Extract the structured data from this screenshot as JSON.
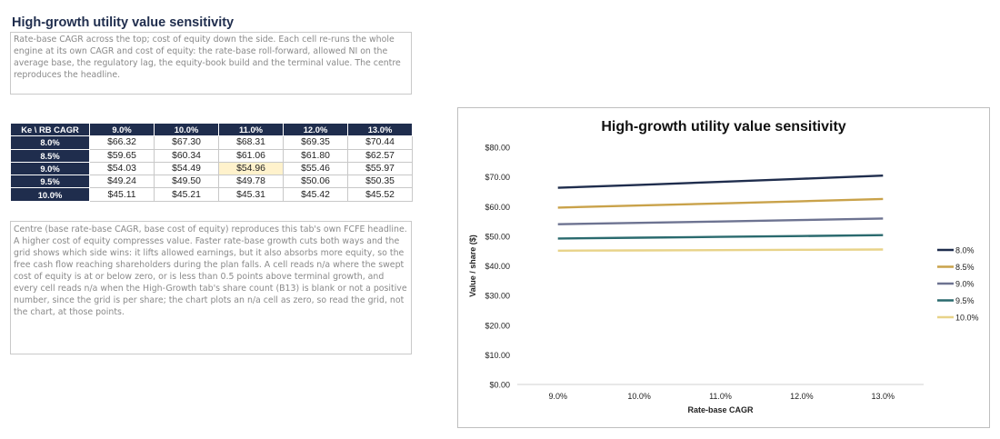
{
  "sheet": {
    "title": "High-growth utility value sensitivity",
    "intro": "Rate-base CAGR across the top; cost of equity down the side. Each cell re-runs the whole engine at its own CAGR and cost of equity: the rate-base roll-forward, allowed NI on the average base, the regulatory lag, the equity-book build and the terminal value. The centre reproduces the headline.",
    "footnote": "Centre (base rate-base CAGR, base cost of equity) reproduces this tab's own FCFE headline. A higher cost of equity compresses value. Faster rate-base growth cuts both ways and the grid shows which side wins: it lifts allowed earnings, but it also absorbs more equity, so the free cash flow reaching shareholders during the plan falls. A cell reads n/a where the swept cost of equity is at or below zero, or is less than 0.5 points above terminal growth, and every cell reads n/a when the High-Growth tab's share count (B13) is blank or not a positive number, since the grid is per share; the chart plots an n/a cell as zero, so read the grid, not the chart, at those points."
  },
  "table": {
    "corner": "Ke \\ RB CAGR",
    "columns": [
      "9.0%",
      "10.0%",
      "11.0%",
      "12.0%",
      "13.0%"
    ],
    "rows": [
      {
        "label": "8.0%",
        "cells": [
          "$66.32",
          "$67.30",
          "$68.31",
          "$69.35",
          "$70.44"
        ]
      },
      {
        "label": "8.5%",
        "cells": [
          "$59.65",
          "$60.34",
          "$61.06",
          "$61.80",
          "$62.57"
        ]
      },
      {
        "label": "9.0%",
        "cells": [
          "$54.03",
          "$54.49",
          "$54.96",
          "$55.46",
          "$55.97"
        ]
      },
      {
        "label": "9.5%",
        "cells": [
          "$49.24",
          "$49.50",
          "$49.78",
          "$50.06",
          "$50.35"
        ]
      },
      {
        "label": "10.0%",
        "cells": [
          "$45.11",
          "$45.21",
          "$45.31",
          "$45.42",
          "$45.52"
        ]
      }
    ],
    "highlight_cell": "9.0% / 11.0%",
    "highlight_color": "#fff2cc",
    "header_color": "#1f2d4d"
  },
  "chart_data": {
    "type": "line",
    "title": "High-growth utility value sensitivity",
    "xlabel": "Rate-base CAGR",
    "ylabel": "Value / share ($)",
    "categories": [
      "9.0%",
      "10.0%",
      "11.0%",
      "12.0%",
      "13.0%"
    ],
    "ylim": [
      0,
      80
    ],
    "yticks": [
      "$0.00",
      "$10.00",
      "$20.00",
      "$30.00",
      "$40.00",
      "$50.00",
      "$60.00",
      "$70.00",
      "$80.00"
    ],
    "grid": false,
    "legend_position": "right",
    "series": [
      {
        "name": "8.0%",
        "color": "#1f2d4d",
        "values": [
          66.32,
          67.3,
          68.31,
          69.35,
          70.44
        ]
      },
      {
        "name": "8.5%",
        "color": "#c9a24a",
        "values": [
          59.65,
          60.34,
          61.06,
          61.8,
          62.57
        ]
      },
      {
        "name": "9.0%",
        "color": "#6d7391",
        "values": [
          54.03,
          54.49,
          54.96,
          55.46,
          55.97
        ]
      },
      {
        "name": "9.5%",
        "color": "#2a6a6e",
        "values": [
          49.24,
          49.5,
          49.78,
          50.06,
          50.35
        ]
      },
      {
        "name": "10.0%",
        "color": "#e8d389",
        "values": [
          45.11,
          45.21,
          45.31,
          45.42,
          45.52
        ]
      }
    ]
  }
}
